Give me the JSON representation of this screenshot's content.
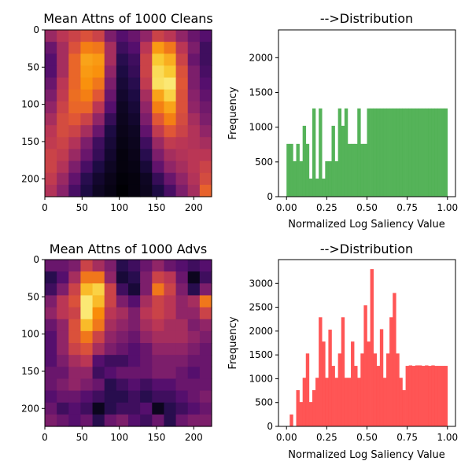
{
  "chart_data": [
    {
      "type": "heatmap",
      "title": "Mean Attns of 1000 Cleans",
      "colormap": "inferno",
      "grid": false,
      "rows": 14,
      "cols": 14,
      "xticks": [
        0,
        50,
        100,
        150,
        200
      ],
      "yticks": [
        0,
        50,
        100,
        150,
        200
      ],
      "xlim": [
        0,
        224
      ],
      "ylim": [
        224,
        0
      ],
      "values": [
        [
          0.42,
          0.5,
          0.55,
          0.6,
          0.55,
          0.35,
          0.25,
          0.3,
          0.4,
          0.55,
          0.5,
          0.4,
          0.3,
          0.25
        ],
        [
          0.3,
          0.45,
          0.6,
          0.72,
          0.7,
          0.45,
          0.2,
          0.25,
          0.5,
          0.78,
          0.7,
          0.5,
          0.35,
          0.2
        ],
        [
          0.25,
          0.45,
          0.66,
          0.8,
          0.78,
          0.45,
          0.15,
          0.2,
          0.55,
          0.88,
          0.82,
          0.55,
          0.3,
          0.2
        ],
        [
          0.25,
          0.45,
          0.66,
          0.78,
          0.76,
          0.4,
          0.12,
          0.18,
          0.55,
          0.92,
          0.88,
          0.6,
          0.35,
          0.22
        ],
        [
          0.3,
          0.5,
          0.66,
          0.76,
          0.7,
          0.35,
          0.1,
          0.15,
          0.52,
          0.93,
          0.95,
          0.62,
          0.35,
          0.25
        ],
        [
          0.35,
          0.52,
          0.68,
          0.72,
          0.62,
          0.3,
          0.08,
          0.12,
          0.45,
          0.8,
          0.9,
          0.6,
          0.38,
          0.28
        ],
        [
          0.4,
          0.55,
          0.66,
          0.66,
          0.5,
          0.25,
          0.06,
          0.1,
          0.4,
          0.72,
          0.8,
          0.6,
          0.4,
          0.32
        ],
        [
          0.45,
          0.58,
          0.62,
          0.55,
          0.4,
          0.18,
          0.05,
          0.08,
          0.35,
          0.62,
          0.72,
          0.58,
          0.45,
          0.35
        ],
        [
          0.5,
          0.58,
          0.55,
          0.45,
          0.3,
          0.12,
          0.04,
          0.06,
          0.28,
          0.52,
          0.62,
          0.55,
          0.48,
          0.4
        ],
        [
          0.52,
          0.55,
          0.48,
          0.35,
          0.2,
          0.1,
          0.03,
          0.05,
          0.2,
          0.42,
          0.52,
          0.5,
          0.48,
          0.45
        ],
        [
          0.55,
          0.52,
          0.42,
          0.3,
          0.18,
          0.08,
          0.02,
          0.04,
          0.15,
          0.35,
          0.45,
          0.48,
          0.5,
          0.5
        ],
        [
          0.55,
          0.48,
          0.35,
          0.22,
          0.12,
          0.06,
          0.02,
          0.03,
          0.1,
          0.28,
          0.4,
          0.45,
          0.5,
          0.55
        ],
        [
          0.52,
          0.42,
          0.28,
          0.15,
          0.08,
          0.04,
          0.01,
          0.02,
          0.06,
          0.18,
          0.3,
          0.4,
          0.48,
          0.58
        ],
        [
          0.48,
          0.38,
          0.22,
          0.12,
          0.06,
          0.03,
          0.0,
          0.02,
          0.05,
          0.12,
          0.22,
          0.35,
          0.45,
          0.65
        ]
      ]
    },
    {
      "type": "bar",
      "title": "-->Distribution",
      "xlabel": "Normalized Log Saliency Value",
      "ylabel": "Frequency",
      "color": "#4caf50",
      "xlim": [
        -0.05,
        1.05
      ],
      "ylim": [
        0,
        2400
      ],
      "xticks": [
        "0.00",
        "0.25",
        "0.50",
        "0.75",
        "1.00"
      ],
      "yticks": [
        0,
        500,
        1000,
        1500,
        2000
      ],
      "bin_start": 0.0,
      "bin_width": 0.02,
      "values": [
        760,
        760,
        510,
        760,
        510,
        1020,
        760,
        260,
        1270,
        260,
        1270,
        260,
        510,
        510,
        1020,
        510,
        1270,
        1020,
        1270,
        760,
        760,
        760,
        1270,
        760,
        760,
        1270,
        1270,
        1270,
        1270,
        1270,
        1270,
        1270,
        1270,
        1270,
        1270,
        1270,
        1270,
        1270,
        1270,
        1270,
        1270,
        1270,
        1270,
        1270,
        1270,
        1270,
        1270,
        1270,
        1270,
        1270
      ]
    },
    {
      "type": "heatmap",
      "title": "Mean Attns of 1000 Advs",
      "colormap": "inferno",
      "grid": false,
      "rows": 14,
      "cols": 14,
      "xticks": [
        0,
        50,
        100,
        150,
        200
      ],
      "yticks": [
        0,
        50,
        100,
        150,
        200
      ],
      "xlim": [
        0,
        224
      ],
      "ylim": [
        224,
        0
      ],
      "values": [
        [
          0.3,
          0.3,
          0.35,
          0.55,
          0.45,
          0.35,
          0.15,
          0.2,
          0.3,
          0.4,
          0.3,
          0.25,
          0.2,
          0.25
        ],
        [
          0.15,
          0.25,
          0.45,
          0.7,
          0.7,
          0.4,
          0.1,
          0.15,
          0.35,
          0.55,
          0.5,
          0.3,
          0.05,
          0.2
        ],
        [
          0.2,
          0.35,
          0.55,
          0.85,
          0.9,
          0.55,
          0.2,
          0.1,
          0.35,
          0.7,
          0.55,
          0.35,
          0.15,
          0.35
        ],
        [
          0.35,
          0.5,
          0.6,
          0.95,
          0.85,
          0.55,
          0.35,
          0.25,
          0.45,
          0.55,
          0.5,
          0.4,
          0.45,
          0.7
        ],
        [
          0.4,
          0.5,
          0.55,
          0.95,
          0.75,
          0.5,
          0.45,
          0.35,
          0.5,
          0.55,
          0.5,
          0.4,
          0.4,
          0.55
        ],
        [
          0.3,
          0.4,
          0.6,
          0.85,
          0.7,
          0.45,
          0.4,
          0.35,
          0.45,
          0.5,
          0.45,
          0.45,
          0.35,
          0.4
        ],
        [
          0.25,
          0.4,
          0.6,
          0.7,
          0.55,
          0.4,
          0.35,
          0.3,
          0.4,
          0.45,
          0.45,
          0.45,
          0.4,
          0.35
        ],
        [
          0.25,
          0.4,
          0.55,
          0.6,
          0.45,
          0.35,
          0.3,
          0.25,
          0.3,
          0.4,
          0.4,
          0.4,
          0.35,
          0.3
        ],
        [
          0.25,
          0.35,
          0.45,
          0.5,
          0.25,
          0.2,
          0.2,
          0.25,
          0.3,
          0.35,
          0.35,
          0.35,
          0.3,
          0.3
        ],
        [
          0.3,
          0.3,
          0.4,
          0.4,
          0.2,
          0.25,
          0.3,
          0.3,
          0.3,
          0.35,
          0.35,
          0.3,
          0.25,
          0.3
        ],
        [
          0.3,
          0.35,
          0.4,
          0.35,
          0.3,
          0.15,
          0.2,
          0.25,
          0.2,
          0.25,
          0.25,
          0.3,
          0.3,
          0.3
        ],
        [
          0.25,
          0.3,
          0.3,
          0.25,
          0.2,
          0.15,
          0.15,
          0.2,
          0.15,
          0.2,
          0.2,
          0.25,
          0.3,
          0.35
        ],
        [
          0.3,
          0.2,
          0.25,
          0.2,
          0.05,
          0.15,
          0.2,
          0.2,
          0.25,
          0.05,
          0.15,
          0.2,
          0.25,
          0.3
        ],
        [
          0.35,
          0.3,
          0.25,
          0.3,
          0.15,
          0.3,
          0.35,
          0.25,
          0.2,
          0.3,
          0.15,
          0.3,
          0.35,
          0.35
        ]
      ]
    },
    {
      "type": "bar",
      "title": "-->Distribution",
      "xlabel": "Normalized Log Saliency Value",
      "ylabel": "Frequency",
      "color": "#ff4c4c",
      "xlim": [
        -0.05,
        1.05
      ],
      "ylim": [
        0,
        3500
      ],
      "xticks": [
        "0.00",
        "0.25",
        "0.50",
        "0.75",
        "1.00"
      ],
      "yticks": [
        0,
        500,
        1000,
        1500,
        2000,
        2500,
        3000
      ],
      "bin_start": 0.0,
      "bin_width": 0.02,
      "values": [
        0,
        250,
        0,
        760,
        510,
        1020,
        1530,
        510,
        760,
        1020,
        2290,
        1780,
        1020,
        2030,
        1270,
        1020,
        1530,
        2290,
        1020,
        1020,
        1780,
        1270,
        1020,
        1530,
        2540,
        1780,
        3300,
        1530,
        1270,
        2040,
        1020,
        1530,
        2290,
        2800,
        1530,
        1020,
        760,
        1270,
        1280,
        1270,
        1280,
        1280,
        1270,
        1280,
        1270,
        1280,
        1270,
        1270,
        1270,
        1270
      ]
    }
  ]
}
